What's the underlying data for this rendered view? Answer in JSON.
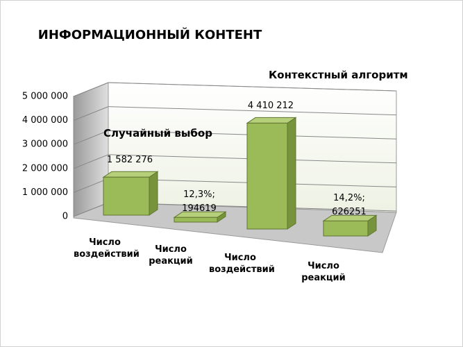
{
  "chart_data": {
    "type": "bar3d",
    "title": "ИНФОРМАЦИОННЫЙ КОНТЕНТ",
    "annotations": [
      "Случайный выбор",
      "Контекстный алгоритм"
    ],
    "categories": [
      "Число воздействий",
      "Число реакций",
      "Число воздействий",
      "Число реакций"
    ],
    "values": [
      1582276,
      194619,
      4410212,
      626251
    ],
    "value_labels": [
      "1 582 276",
      "12,3%; 194619",
      "4 410 212",
      "14,2%; 626251"
    ],
    "color": "#9bbb59",
    "ylim": [
      0,
      5000000
    ],
    "yticks": [
      0,
      {
        "value": 1000000,
        "label": "1 000 000"
      },
      {
        "value": 2000000,
        "label": "2 000 000"
      },
      {
        "value": 3000000,
        "label": "3 000 000"
      },
      {
        "value": 4000000,
        "label": "4 000 000"
      },
      {
        "value": 5000000,
        "label": "5 000 000"
      }
    ],
    "grid": true
  }
}
